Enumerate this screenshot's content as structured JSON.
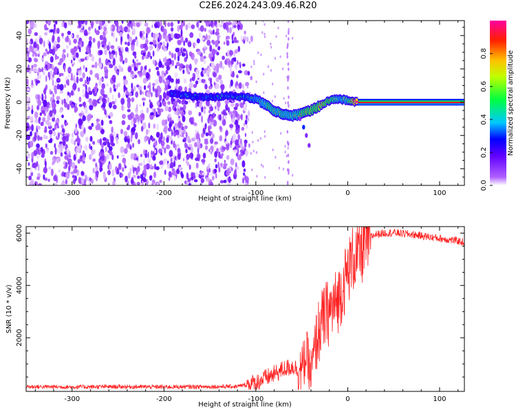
{
  "title": "C2E6.2024.243.09.46.R20",
  "chart_data": [
    {
      "type": "heatmap",
      "name": "spectrogram",
      "xlabel": "Height of straight line (km)",
      "ylabel": "Frequency (Hz)",
      "xlim": [
        -350,
        127
      ],
      "ylim": [
        -50,
        49
      ],
      "x_ticks": [
        -300,
        -200,
        -100,
        0,
        100
      ],
      "y_ticks": [
        -40,
        -20,
        0,
        20,
        40
      ],
      "colorbar": {
        "label": "Normalized spectral amplitude",
        "range": [
          0,
          1
        ],
        "ticks": [
          0.0,
          0.2,
          0.4,
          0.6,
          0.8
        ],
        "colormap": [
          "#ffffff",
          "#8000ff",
          "#0000ff",
          "#00c8ff",
          "#00ff00",
          "#ffff00",
          "#ff8000",
          "#ff0000",
          "#ff00a0"
        ]
      },
      "noise_region_x": [
        -350,
        -110
      ],
      "signal_track": {
        "x": [
          -193,
          -175,
          -160,
          -145,
          -130,
          -115,
          -100,
          -90,
          -80,
          -70,
          -60,
          -50,
          -40,
          -30,
          -20,
          -10,
          0,
          10,
          127
        ],
        "freq": [
          5,
          4,
          3,
          3,
          4,
          3,
          2,
          -1,
          -5,
          -7,
          -8,
          -7,
          -5,
          -2,
          1,
          2,
          1,
          0,
          0
        ],
        "amplitude": [
          0.25,
          0.3,
          0.3,
          0.35,
          0.3,
          0.35,
          0.4,
          0.5,
          0.55,
          0.55,
          0.5,
          0.6,
          0.7,
          0.7,
          0.65,
          0.45,
          0.5,
          0.95,
          0.95
        ]
      },
      "secondary_branch": {
        "x": [
          -52,
          -48,
          -45,
          -42
        ],
        "freq": [
          -10,
          -15,
          -20,
          -26
        ]
      }
    },
    {
      "type": "line",
      "name": "snr",
      "xlabel": "Height of straight line (km)",
      "ylabel": "SNR (10 * v/v)",
      "xlim": [
        -350,
        127
      ],
      "ylim": [
        -50,
        6250
      ],
      "x_ticks": [
        -300,
        -200,
        -100,
        0,
        100
      ],
      "y_ticks": [
        2000,
        4000,
        6000
      ],
      "color": "#ff2020",
      "series": [
        {
          "name": "SNR",
          "x": [
            -350,
            -300,
            -250,
            -200,
            -150,
            -120,
            -100,
            -90,
            -80,
            -70,
            -60,
            -50,
            -45,
            -40,
            -35,
            -30,
            -25,
            -20,
            -15,
            -10,
            -5,
            0,
            5,
            10,
            15,
            20,
            25,
            30,
            40,
            50,
            60,
            70,
            80,
            90,
            100,
            110,
            120,
            127
          ],
          "y": [
            130,
            120,
            130,
            120,
            130,
            140,
            280,
            450,
            600,
            800,
            900,
            750,
            1400,
            600,
            1800,
            2400,
            2800,
            3000,
            3200,
            3500,
            4000,
            4500,
            5000,
            5100,
            5300,
            5600,
            5850,
            5950,
            6000,
            6020,
            5980,
            5950,
            5900,
            5850,
            5800,
            5750,
            5700,
            5650
          ]
        }
      ]
    }
  ]
}
